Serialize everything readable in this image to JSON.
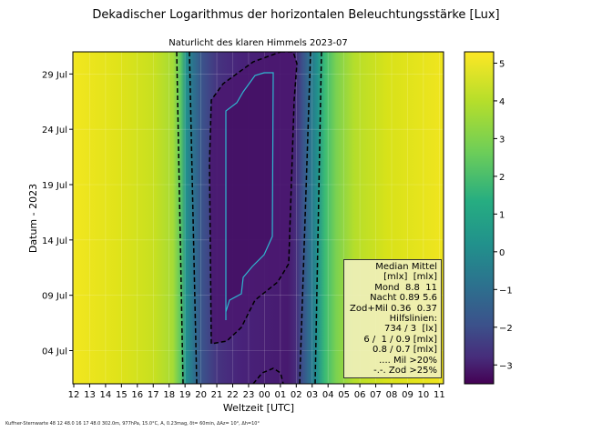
{
  "chart_data": {
    "type": "heatmap",
    "title": "Dekadischer Logarithmus der horizontalen Beleuchtungsstärke [Lux]",
    "subtitle": "Naturlicht des klaren Himmels 2023-07",
    "xlabel": "Weltzeit [UTC]",
    "ylabel": "Datum - 2023",
    "x_ticks": [
      "12",
      "13",
      "14",
      "15",
      "16",
      "17",
      "18",
      "19",
      "20",
      "21",
      "22",
      "23",
      "00",
      "01",
      "02",
      "03",
      "04",
      "05",
      "06",
      "07",
      "08",
      "09",
      "10",
      "11"
    ],
    "y_ticks": [
      {
        "day": 4,
        "label": "04 Jul"
      },
      {
        "day": 9,
        "label": "09 Jul"
      },
      {
        "day": 14,
        "label": "14 Jul"
      },
      {
        "day": 19,
        "label": "19 Jul"
      },
      {
        "day": 24,
        "label": "24 Jul"
      },
      {
        "day": 29,
        "label": "29 Jul"
      }
    ],
    "ylim": [
      1,
      31
    ],
    "colorbar": {
      "colormap": "viridis",
      "range": [
        -3.5,
        5.3
      ],
      "ticks": [
        -3,
        -2,
        -1,
        0,
        1,
        2,
        3,
        4,
        5
      ],
      "tick_labels": [
        "−3",
        "−2",
        "−1",
        "0",
        "1",
        "2",
        "3",
        "4",
        "5"
      ]
    },
    "grid": true,
    "legend_placement": "bottom-right",
    "legend_lines": [
      "Median Mittel",
      "[mlx]  [mlx]",
      "Mond  8.8  11",
      "Nacht 0.89 5.6",
      "Zod+Mil 0.36  0.37",
      "Hilfslinien:",
      "734 / 3  [lx]",
      "6 /  1 / 0.9 [mlx]",
      "0.8 / 0.7 [mlx]",
      ".... Mil >20%",
      "-.-. Zod >25%"
    ],
    "hourly_profile_log_lux": [
      {
        "hour": "12",
        "value": 5.1
      },
      {
        "hour": "15",
        "value": 4.8
      },
      {
        "hour": "17",
        "value": 4.1
      },
      {
        "hour": "18",
        "value": 3.3
      },
      {
        "hour": "19",
        "value": 1.5
      },
      {
        "hour": "20",
        "value": -1.5
      },
      {
        "hour": "21",
        "value": -2.6
      },
      {
        "hour": "22",
        "value": -3.2
      },
      {
        "hour": "00",
        "value": -3.3
      },
      {
        "hour": "01",
        "value": -3.0
      },
      {
        "hour": "02",
        "value": -2.0
      },
      {
        "hour": "03",
        "value": 0.5
      },
      {
        "hour": "04",
        "value": 3.0
      },
      {
        "hour": "05",
        "value": 4.0
      },
      {
        "hour": "07",
        "value": 4.5
      },
      {
        "hour": "11",
        "value": 5.1
      }
    ]
  },
  "footer": "Kuffner-Sternwarte 48 12 48.0 16 17 48.0 302.0m,  977hPa, 15.0°C, A, 0.23mag, δt= 60min, ΔAz= 10°, Δh=10°"
}
